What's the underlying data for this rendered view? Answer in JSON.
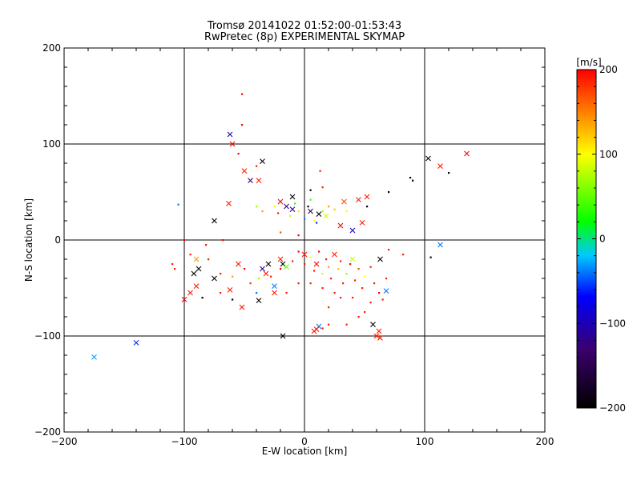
{
  "chart_data": {
    "type": "scatter",
    "title": "Tromsø 20141022 01:52:00-01:53:43",
    "subtitle": "RwPretec (8p) EXPERIMENTAL SKYMAP",
    "xlabel": "E-W location [km]",
    "ylabel": "N-S location [km]",
    "xlim": [
      -200,
      200
    ],
    "ylim": [
      -200,
      200
    ],
    "xticks": [
      -200,
      -100,
      0,
      100,
      200
    ],
    "yticks": [
      -200,
      -100,
      0,
      100,
      200
    ],
    "grid": true,
    "colorbar": {
      "label": "[m/s]",
      "range": [
        -200,
        200
      ],
      "ticks": [
        200,
        100,
        0,
        -100,
        -200
      ],
      "colors": [
        "#000000",
        "#3a006b",
        "#0000ff",
        "#00c8ff",
        "#00ff00",
        "#ffff00",
        "#ff0000"
      ]
    },
    "cross_points": [
      {
        "x": -62,
        "y": 110,
        "v": -110
      },
      {
        "x": -60,
        "y": 100,
        "v": 200
      },
      {
        "x": -45,
        "y": 62,
        "v": -130
      },
      {
        "x": -38,
        "y": 62,
        "v": 190
      },
      {
        "x": -35,
        "y": 82,
        "v": -200
      },
      {
        "x": -50,
        "y": 72,
        "v": 190
      },
      {
        "x": -63,
        "y": 38,
        "v": 190
      },
      {
        "x": -75,
        "y": 20,
        "v": -200
      },
      {
        "x": 103,
        "y": 85,
        "v": -200
      },
      {
        "x": 113,
        "y": 77,
        "v": 190
      },
      {
        "x": 135,
        "y": 90,
        "v": 200
      },
      {
        "x": 45,
        "y": 42,
        "v": 190
      },
      {
        "x": 52,
        "y": 45,
        "v": 190
      },
      {
        "x": 33,
        "y": 40,
        "v": 170
      },
      {
        "x": 30,
        "y": 15,
        "v": 200
      },
      {
        "x": 40,
        "y": 10,
        "v": -110
      },
      {
        "x": 48,
        "y": 18,
        "v": 190
      },
      {
        "x": 113,
        "y": -5,
        "v": -60
      },
      {
        "x": 63,
        "y": -20,
        "v": -200
      },
      {
        "x": -10,
        "y": 45,
        "v": -200
      },
      {
        "x": -20,
        "y": 40,
        "v": 200
      },
      {
        "x": -15,
        "y": 35,
        "v": -130
      },
      {
        "x": -10,
        "y": 32,
        "v": -120
      },
      {
        "x": 5,
        "y": 30,
        "v": -140
      },
      {
        "x": 12,
        "y": 27,
        "v": -200
      },
      {
        "x": 18,
        "y": 25,
        "v": 80
      },
      {
        "x": -90,
        "y": -20,
        "v": 140
      },
      {
        "x": -92,
        "y": -35,
        "v": -200
      },
      {
        "x": -88,
        "y": -30,
        "v": -200
      },
      {
        "x": -75,
        "y": -40,
        "v": -200
      },
      {
        "x": -62,
        "y": -52,
        "v": 190
      },
      {
        "x": -95,
        "y": -55,
        "v": 190
      },
      {
        "x": -100,
        "y": -62,
        "v": 200
      },
      {
        "x": -90,
        "y": -48,
        "v": 190
      },
      {
        "x": -55,
        "y": -25,
        "v": 190
      },
      {
        "x": -35,
        "y": -30,
        "v": -120
      },
      {
        "x": -30,
        "y": -25,
        "v": -200
      },
      {
        "x": -32,
        "y": -35,
        "v": 190
      },
      {
        "x": -20,
        "y": -20,
        "v": 190
      },
      {
        "x": -18,
        "y": -25,
        "v": -200
      },
      {
        "x": -15,
        "y": -28,
        "v": 40
      },
      {
        "x": -38,
        "y": -63,
        "v": -200
      },
      {
        "x": -25,
        "y": -55,
        "v": 190
      },
      {
        "x": -52,
        "y": -70,
        "v": 190
      },
      {
        "x": -25,
        "y": -48,
        "v": -60
      },
      {
        "x": 0,
        "y": -15,
        "v": 190
      },
      {
        "x": 10,
        "y": -25,
        "v": 200
      },
      {
        "x": 25,
        "y": -15,
        "v": 190
      },
      {
        "x": 40,
        "y": -20,
        "v": 80
      },
      {
        "x": 12,
        "y": -90,
        "v": -60
      },
      {
        "x": 10,
        "y": -93,
        "v": 190
      },
      {
        "x": 8,
        "y": -95,
        "v": 190
      },
      {
        "x": -18,
        "y": -100,
        "v": -200
      },
      {
        "x": 57,
        "y": -88,
        "v": -200
      },
      {
        "x": 60,
        "y": -100,
        "v": 190
      },
      {
        "x": 62,
        "y": -95,
        "v": 190
      },
      {
        "x": 63,
        "y": -102,
        "v": 190
      },
      {
        "x": 68,
        "y": -53,
        "v": -60
      },
      {
        "x": -140,
        "y": -107,
        "v": -80
      },
      {
        "x": -175,
        "y": -122,
        "v": -50
      }
    ],
    "dot_points": [
      {
        "x": -52,
        "y": 152,
        "v": 200
      },
      {
        "x": -52,
        "y": 120,
        "v": 200
      },
      {
        "x": -40,
        "y": 77,
        "v": 190
      },
      {
        "x": -55,
        "y": 90,
        "v": 200
      },
      {
        "x": -105,
        "y": 37,
        "v": -60
      },
      {
        "x": -40,
        "y": 35,
        "v": 60
      },
      {
        "x": -35,
        "y": 30,
        "v": 140
      },
      {
        "x": -25,
        "y": 35,
        "v": 100
      },
      {
        "x": -22,
        "y": 28,
        "v": 190
      },
      {
        "x": -12,
        "y": 25,
        "v": 80
      },
      {
        "x": -8,
        "y": 38,
        "v": 20
      },
      {
        "x": -5,
        "y": 30,
        "v": 110
      },
      {
        "x": 0,
        "y": 22,
        "v": -60
      },
      {
        "x": 3,
        "y": 35,
        "v": -200
      },
      {
        "x": 8,
        "y": 20,
        "v": 100
      },
      {
        "x": 15,
        "y": 30,
        "v": 60
      },
      {
        "x": 20,
        "y": 35,
        "v": 140
      },
      {
        "x": 15,
        "y": 55,
        "v": 190
      },
      {
        "x": 13,
        "y": 72,
        "v": 190
      },
      {
        "x": 5,
        "y": 52,
        "v": -200
      },
      {
        "x": 25,
        "y": 32,
        "v": 120
      },
      {
        "x": 5,
        "y": 42,
        "v": 30
      },
      {
        "x": 10,
        "y": 18,
        "v": -80
      },
      {
        "x": 35,
        "y": 30,
        "v": 100
      },
      {
        "x": 52,
        "y": 35,
        "v": -200
      },
      {
        "x": 70,
        "y": 50,
        "v": -200
      },
      {
        "x": 88,
        "y": 65,
        "v": -200
      },
      {
        "x": 90,
        "y": 62,
        "v": -200
      },
      {
        "x": 120,
        "y": 70,
        "v": -200
      },
      {
        "x": -20,
        "y": 8,
        "v": 170
      },
      {
        "x": -5,
        "y": 5,
        "v": 200
      },
      {
        "x": -68,
        "y": 0,
        "v": 200
      },
      {
        "x": -82,
        "y": -5,
        "v": 190
      },
      {
        "x": -100,
        "y": 0,
        "v": 200
      },
      {
        "x": -110,
        "y": -25,
        "v": 190
      },
      {
        "x": -108,
        "y": -30,
        "v": 190
      },
      {
        "x": -95,
        "y": -15,
        "v": 190
      },
      {
        "x": -80,
        "y": -20,
        "v": 190
      },
      {
        "x": -70,
        "y": -35,
        "v": 190
      },
      {
        "x": -60,
        "y": -38,
        "v": 140
      },
      {
        "x": -50,
        "y": -30,
        "v": 200
      },
      {
        "x": -45,
        "y": -45,
        "v": 180
      },
      {
        "x": -38,
        "y": -40,
        "v": 60
      },
      {
        "x": -28,
        "y": -38,
        "v": 190
      },
      {
        "x": -20,
        "y": -30,
        "v": 200
      },
      {
        "x": -10,
        "y": -22,
        "v": 190
      },
      {
        "x": -5,
        "y": -12,
        "v": 200
      },
      {
        "x": 0,
        "y": -25,
        "v": 190
      },
      {
        "x": 5,
        "y": -18,
        "v": 100
      },
      {
        "x": 8,
        "y": -32,
        "v": 190
      },
      {
        "x": 12,
        "y": -12,
        "v": 200
      },
      {
        "x": 15,
        "y": -35,
        "v": 80
      },
      {
        "x": 18,
        "y": -20,
        "v": 190
      },
      {
        "x": 20,
        "y": -28,
        "v": 140
      },
      {
        "x": 22,
        "y": -40,
        "v": 190
      },
      {
        "x": 28,
        "y": -30,
        "v": 120
      },
      {
        "x": 30,
        "y": -22,
        "v": 190
      },
      {
        "x": 32,
        "y": -45,
        "v": 190
      },
      {
        "x": 35,
        "y": -35,
        "v": 60
      },
      {
        "x": 38,
        "y": -25,
        "v": 200
      },
      {
        "x": 42,
        "y": -42,
        "v": 190
      },
      {
        "x": 45,
        "y": -30,
        "v": 170
      },
      {
        "x": 48,
        "y": -50,
        "v": 190
      },
      {
        "x": 50,
        "y": -38,
        "v": 100
      },
      {
        "x": 55,
        "y": -28,
        "v": 190
      },
      {
        "x": 58,
        "y": -45,
        "v": 190
      },
      {
        "x": 62,
        "y": -55,
        "v": 200
      },
      {
        "x": 68,
        "y": -40,
        "v": 190
      },
      {
        "x": 70,
        "y": -10,
        "v": 190
      },
      {
        "x": 82,
        "y": -15,
        "v": 190
      },
      {
        "x": 105,
        "y": -18,
        "v": -200
      },
      {
        "x": 40,
        "y": -60,
        "v": 190
      },
      {
        "x": 25,
        "y": -55,
        "v": 190
      },
      {
        "x": 15,
        "y": -50,
        "v": 190
      },
      {
        "x": 5,
        "y": -45,
        "v": 190
      },
      {
        "x": -5,
        "y": -45,
        "v": 190
      },
      {
        "x": -15,
        "y": -55,
        "v": 190
      },
      {
        "x": -60,
        "y": -62,
        "v": -200
      },
      {
        "x": -70,
        "y": -55,
        "v": 190
      },
      {
        "x": -85,
        "y": -60,
        "v": -200
      },
      {
        "x": -40,
        "y": -55,
        "v": -60
      },
      {
        "x": 50,
        "y": -75,
        "v": 190
      },
      {
        "x": 45,
        "y": -80,
        "v": 190
      },
      {
        "x": 20,
        "y": -88,
        "v": 190
      },
      {
        "x": 15,
        "y": -92,
        "v": 190
      },
      {
        "x": 35,
        "y": -88,
        "v": 190
      },
      {
        "x": 55,
        "y": -65,
        "v": 190
      },
      {
        "x": 65,
        "y": -62,
        "v": 190
      },
      {
        "x": 30,
        "y": -60,
        "v": 190
      },
      {
        "x": 20,
        "y": -70,
        "v": 190
      }
    ]
  }
}
